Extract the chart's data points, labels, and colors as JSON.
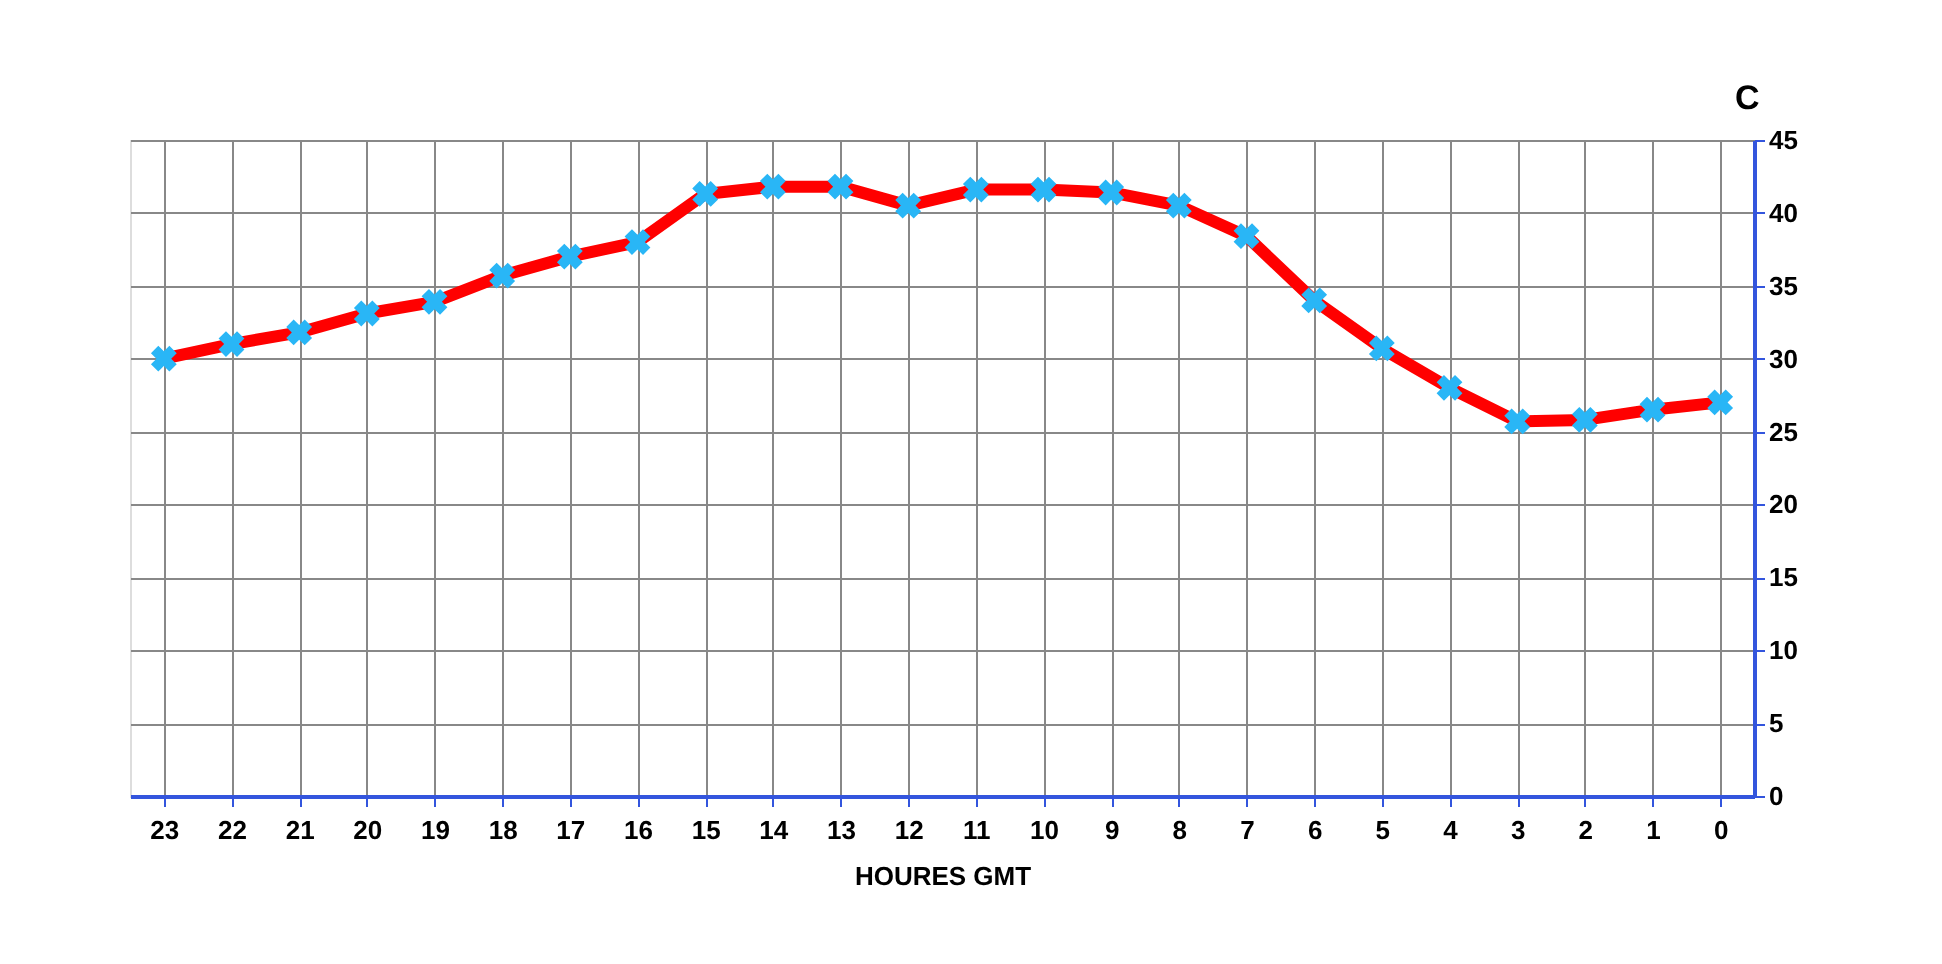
{
  "chart_data": {
    "type": "line",
    "xlabel": "HOURES GMT",
    "ylabel": "C",
    "categories": [
      "23",
      "22",
      "21",
      "20",
      "19",
      "18",
      "17",
      "16",
      "15",
      "14",
      "13",
      "12",
      "11",
      "10",
      "9",
      "8",
      "7",
      "6",
      "5",
      "4",
      "3",
      "2",
      "1",
      "0"
    ],
    "series": [
      {
        "color": "#ff0000",
        "values": [
          30.0,
          31.0,
          31.8,
          33.1,
          33.9,
          35.7,
          37.0,
          38.0,
          41.3,
          41.8,
          41.8,
          40.5,
          41.6,
          41.6,
          41.4,
          40.5,
          38.4,
          34.0,
          30.7,
          28.0,
          25.7,
          25.8,
          26.5,
          27.0
        ]
      }
    ],
    "ylim": [
      0,
      45
    ],
    "yticks": [
      0,
      5,
      10,
      15,
      20,
      25,
      30,
      35,
      40,
      45
    ],
    "grid": true,
    "marker": "cross",
    "line_style": "solid"
  }
}
